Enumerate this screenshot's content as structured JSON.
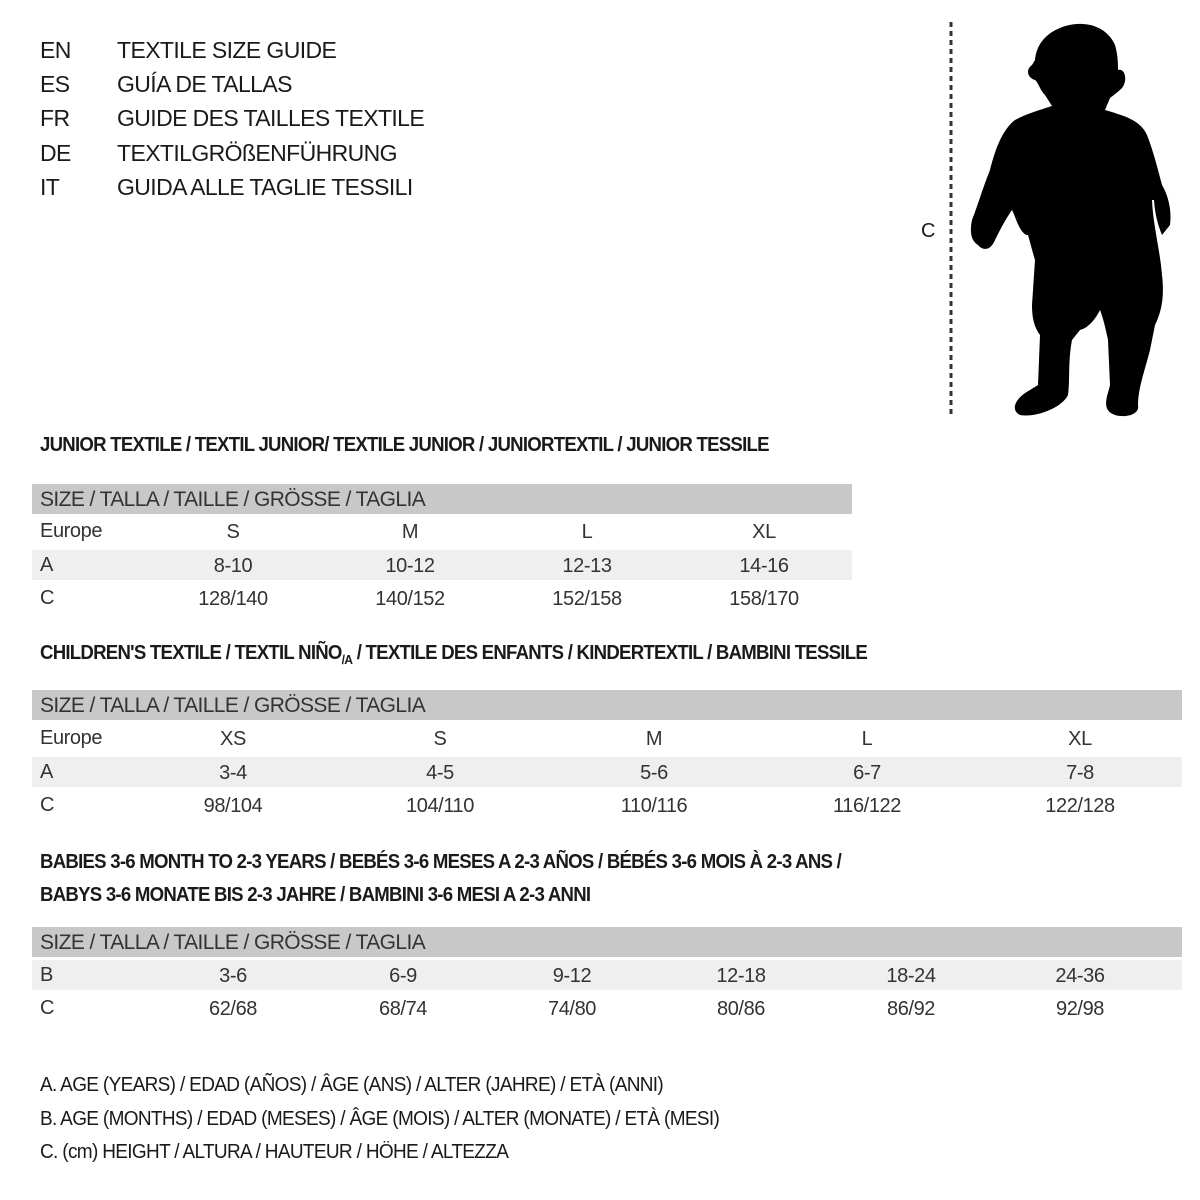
{
  "titles": [
    {
      "code": "EN",
      "text": "TEXTILE SIZE GUIDE"
    },
    {
      "code": "ES",
      "text": "GUÍA DE TALLAS"
    },
    {
      "code": "FR",
      "text": "GUIDE DES TAILLES TEXTILE"
    },
    {
      "code": "DE",
      "text": "TEXTILGRÖßENFÜHRUNG"
    },
    {
      "code": "IT",
      "text": "GUIDA ALLE TAGLIE TESSILI"
    }
  ],
  "figure": {
    "measure_label": "C",
    "icon": "child-silhouette"
  },
  "size_header": "SIZE / TALLA / TAILLE / GRÖSSE / TAGLIA",
  "junior": {
    "heading": "JUNIOR TEXTILE / TEXTIL JUNIOR/ TEXTILE JUNIOR / JUNIORTEXTIL / JUNIOR TESSILE",
    "rows": [
      {
        "label": "Europe",
        "cells": [
          "S",
          "M",
          "L",
          "XL"
        ]
      },
      {
        "label": "A",
        "cells": [
          "8-10",
          "10-12",
          "12-13",
          "14-16"
        ]
      },
      {
        "label": "C",
        "cells": [
          "128/140",
          "140/152",
          "152/158",
          "158/170"
        ]
      }
    ]
  },
  "children": {
    "heading_pre": "CHILDREN'S TEXTILE / TEXTIL NIÑO",
    "heading_sub": "/A",
    "heading_post": " / TEXTILE DES ENFANTS / KINDERTEXTIL / BAMBINI TESSILE",
    "rows": [
      {
        "label": "Europe",
        "cells": [
          "XS",
          "S",
          "M",
          "L",
          "XL"
        ]
      },
      {
        "label": "A",
        "cells": [
          "3-4",
          "4-5",
          "5-6",
          "6-7",
          "7-8"
        ]
      },
      {
        "label": "C",
        "cells": [
          "98/104",
          "104/110",
          "110/116",
          "116/122",
          "122/128"
        ]
      }
    ]
  },
  "babies": {
    "heading_line1": "BABIES 3-6 MONTH TO 2-3 YEARS / BEBÉS 3-6 MESES A 2-3 AÑOS / BÉBÉS 3-6 MOIS À 2-3 ANS /",
    "heading_line2": "BABYS 3-6 MONATE BIS 2-3 JAHRE / BAMBINI 3-6 MESI A 2-3 ANNI",
    "rows": [
      {
        "label": "B",
        "cells": [
          "3-6",
          "6-9",
          "9-12",
          "12-18",
          "18-24",
          "24-36"
        ]
      },
      {
        "label": "C",
        "cells": [
          "62/68",
          "68/74",
          "74/80",
          "80/86",
          "86/92",
          "92/98"
        ]
      }
    ]
  },
  "legend": [
    "A. AGE (YEARS) / EDAD (AÑOS) / ÂGE (ANS) / ALTER (JAHRE) / ETÀ (ANNI)",
    "B. AGE (MONTHS) / EDAD (MESES) / ÂGE (MOIS) / ALTER (MONATE) / ETÀ (MESI)",
    "C. (cm) HEIGHT / ALTURA / HAUTEUR / HÖHE / ALTEZZA"
  ],
  "colors": {
    "header_bar": "#c8c8c8",
    "alt_row": "#efefef",
    "text": "#1a1a1a"
  }
}
